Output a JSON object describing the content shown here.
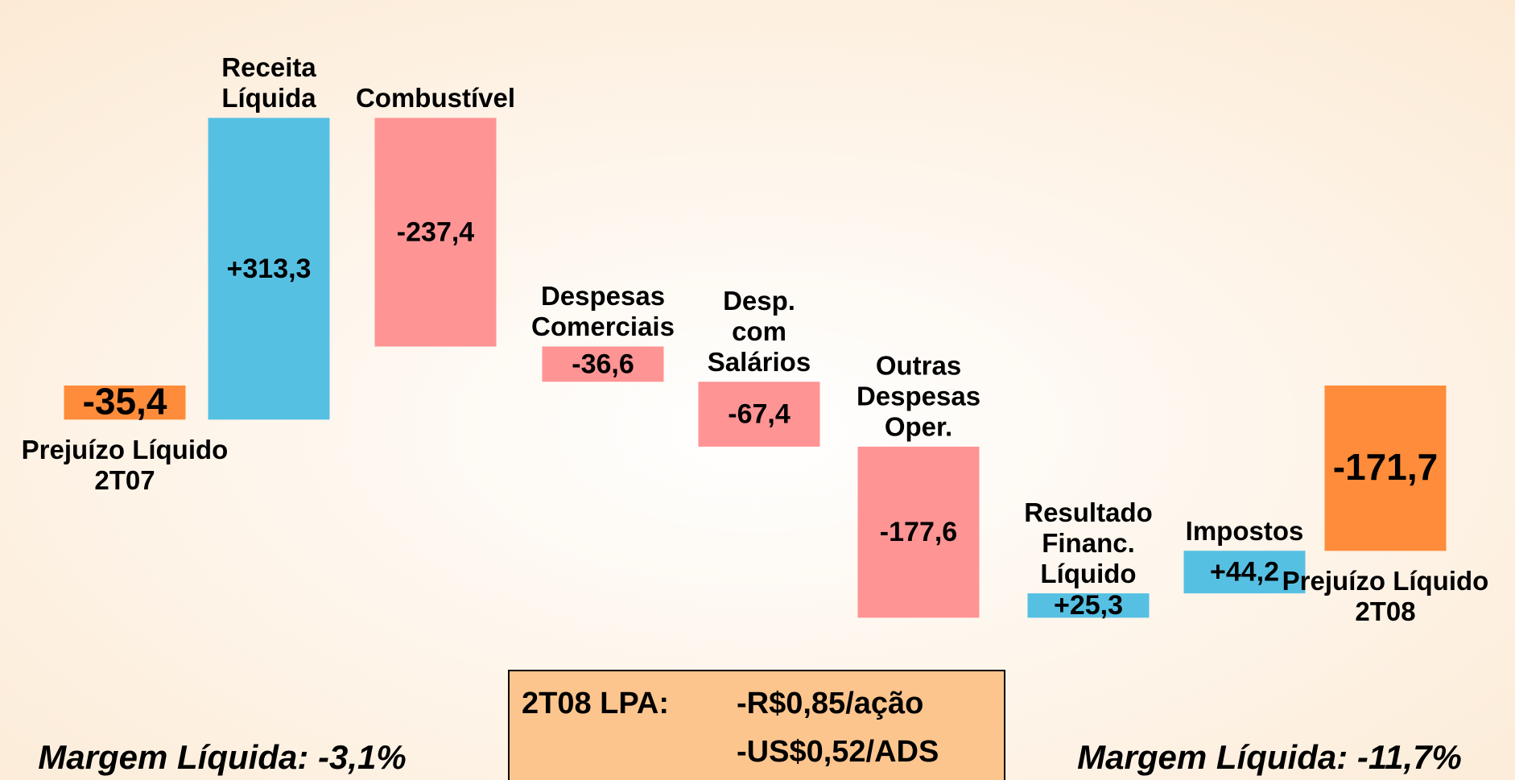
{
  "chart_data": {
    "type": "waterfall",
    "categories": [
      [
        "Prejuízo Líquido",
        "2T07"
      ],
      [
        "Receita",
        "Líquida"
      ],
      [
        "Combustível"
      ],
      [
        "Despesas",
        "Comerciais"
      ],
      [
        "Desp.",
        "com",
        "Salários"
      ],
      [
        "Outras",
        "Despesas",
        "Oper."
      ],
      [
        "Resultado",
        "Financ.",
        "Líquido"
      ],
      [
        "Impostos"
      ],
      [
        "Prejuízo Líquido",
        "2T08"
      ]
    ],
    "measure": [
      "total",
      "relative",
      "relative",
      "relative",
      "relative",
      "relative",
      "relative",
      "relative",
      "total"
    ],
    "values": [
      -35.4,
      313.3,
      -237.4,
      -36.6,
      -67.4,
      -177.6,
      25.3,
      44.2,
      -171.7
    ],
    "value_labels": [
      "-35,4",
      "+313,3",
      "-237,4",
      "-36,6",
      "-67,4",
      "-177,6",
      "+25,3",
      "+44,2",
      "-171,7"
    ],
    "colors": {
      "total": "#ff8c3a",
      "increase": "#56c0e3",
      "decrease": "#ff9494"
    },
    "ylim": [
      -260,
      300
    ],
    "annotations": {
      "left_margin": "Margem Líquida: -3,1%",
      "right_margin": "Margem Líquida: -11,7%",
      "eps_label": "2T08 LPA:",
      "eps_share": "-R$0,85/ação",
      "eps_ads": "-US$0,52/ADS"
    }
  }
}
